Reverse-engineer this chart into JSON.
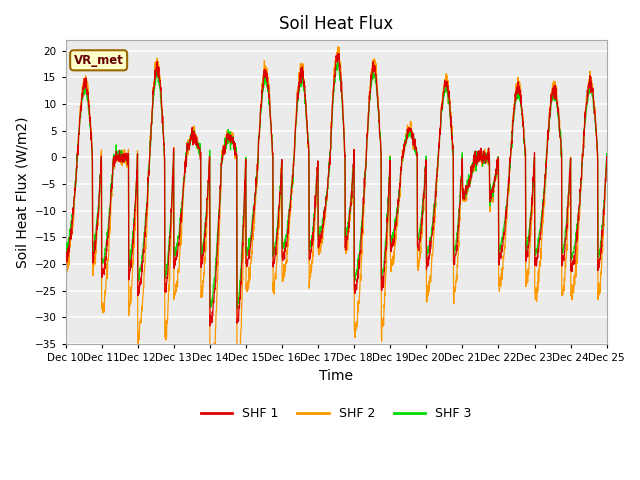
{
  "title": "Soil Heat Flux",
  "xlabel": "Time",
  "ylabel": "Soil Heat Flux (W/m2)",
  "ylim": [
    -35,
    22
  ],
  "yticks": [
    -35,
    -30,
    -25,
    -20,
    -15,
    -10,
    -5,
    0,
    5,
    10,
    15,
    20
  ],
  "colors": {
    "SHF 1": "#dd0000",
    "SHF 2": "#ff9900",
    "SHF 3": "#00dd00"
  },
  "legend_labels": [
    "SHF 1",
    "SHF 2",
    "SHF 3"
  ],
  "annotation_text": "VR_met",
  "annotation_box_color": "#ffffcc",
  "annotation_box_edgecolor": "#996600",
  "plot_bg_color": "#ebebeb",
  "grid_color": "#ffffff",
  "n_days": 15,
  "pts_per_day": 144,
  "start_day": 10,
  "xlabel_fontsize": 10,
  "ylabel_fontsize": 10,
  "title_fontsize": 12,
  "day_amplitudes": [
    14,
    0,
    17,
    4,
    4,
    16,
    16,
    19,
    17,
    5,
    14,
    0,
    13,
    13,
    14
  ],
  "night_amplitudes": [
    -19,
    -22,
    -25,
    -20,
    -31,
    -20,
    -19,
    -16,
    -25,
    -17,
    -20,
    -7,
    -19,
    -20,
    -21
  ],
  "shf2_night_extra": [
    1.1,
    1.3,
    1.35,
    1.3,
    1.4,
    1.25,
    1.2,
    1.1,
    1.3,
    1.2,
    1.3,
    1.1,
    1.25,
    1.3,
    1.25
  ]
}
